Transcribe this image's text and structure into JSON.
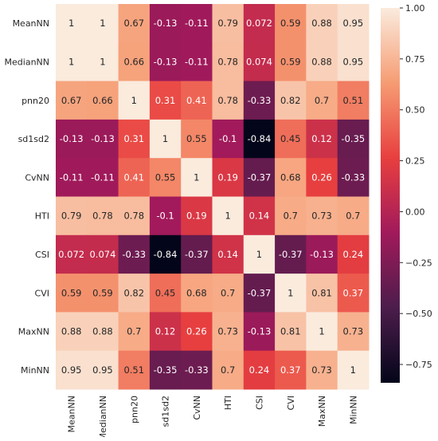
{
  "chart_data": {
    "type": "heatmap",
    "title": "",
    "xlabel": "",
    "ylabel": "",
    "x_categories": [
      "MeanNN",
      "MedianNN",
      "pnn20",
      "sd1sd2",
      "CvNN",
      "HTI",
      "CSI",
      "CVI",
      "MaxNN",
      "MinNN"
    ],
    "y_categories": [
      "MeanNN",
      "MedianNN",
      "pnn20",
      "sd1sd2",
      "CvNN",
      "HTI",
      "CSI",
      "CVI",
      "MaxNN",
      "MinNN"
    ],
    "values": [
      [
        1,
        1,
        0.67,
        -0.13,
        -0.11,
        0.79,
        0.072,
        0.59,
        0.88,
        0.95
      ],
      [
        1,
        1,
        0.66,
        -0.13,
        -0.11,
        0.78,
        0.074,
        0.59,
        0.88,
        0.95
      ],
      [
        0.67,
        0.66,
        1,
        0.31,
        0.41,
        0.78,
        -0.33,
        0.82,
        0.7,
        0.51
      ],
      [
        -0.13,
        -0.13,
        0.31,
        1,
        0.55,
        -0.1,
        -0.84,
        0.45,
        0.12,
        -0.35
      ],
      [
        -0.11,
        -0.11,
        0.41,
        0.55,
        1,
        0.19,
        -0.37,
        0.68,
        0.26,
        -0.33
      ],
      [
        0.79,
        0.78,
        0.78,
        -0.1,
        0.19,
        1,
        0.14,
        0.7,
        0.73,
        0.7
      ],
      [
        0.072,
        0.074,
        -0.33,
        -0.84,
        -0.37,
        0.14,
        1,
        -0.37,
        -0.13,
        0.24
      ],
      [
        0.59,
        0.59,
        0.82,
        0.45,
        0.68,
        0.7,
        -0.37,
        1,
        0.81,
        0.37
      ],
      [
        0.88,
        0.88,
        0.7,
        0.12,
        0.26,
        0.73,
        -0.13,
        0.81,
        1,
        0.73
      ],
      [
        0.95,
        0.95,
        0.51,
        -0.35,
        -0.33,
        0.7,
        0.24,
        0.37,
        0.73,
        1
      ]
    ],
    "value_labels": [
      [
        "1",
        "1",
        "0.67",
        "-0.13",
        "-0.11",
        "0.79",
        "0.072",
        "0.59",
        "0.88",
        "0.95"
      ],
      [
        "1",
        "1",
        "0.66",
        "-0.13",
        "-0.11",
        "0.78",
        "0.074",
        "0.59",
        "0.88",
        "0.95"
      ],
      [
        "0.67",
        "0.66",
        "1",
        "0.31",
        "0.41",
        "0.78",
        "-0.33",
        "0.82",
        "0.7",
        "0.51"
      ],
      [
        "-0.13",
        "-0.13",
        "0.31",
        "1",
        "0.55",
        "-0.1",
        "-0.84",
        "0.45",
        "0.12",
        "-0.35"
      ],
      [
        "-0.11",
        "-0.11",
        "0.41",
        "0.55",
        "1",
        "0.19",
        "-0.37",
        "0.68",
        "0.26",
        "-0.33"
      ],
      [
        "0.79",
        "0.78",
        "0.78",
        "-0.1",
        "0.19",
        "1",
        "0.14",
        "0.7",
        "0.73",
        "0.7"
      ],
      [
        "0.072",
        "0.074",
        "-0.33",
        "-0.84",
        "-0.37",
        "0.14",
        "1",
        "-0.37",
        "-0.13",
        "0.24"
      ],
      [
        "0.59",
        "0.59",
        "0.82",
        "0.45",
        "0.68",
        "0.7",
        "-0.37",
        "1",
        "0.81",
        "0.37"
      ],
      [
        "0.88",
        "0.88",
        "0.7",
        "0.12",
        "0.26",
        "0.73",
        "-0.13",
        "0.81",
        "1",
        "0.73"
      ],
      [
        "0.95",
        "0.95",
        "0.51",
        "-0.35",
        "-0.33",
        "0.7",
        "0.24",
        "0.37",
        "0.73",
        "1"
      ]
    ],
    "colorbar": {
      "range": [
        -0.84,
        1.0
      ],
      "ticks": [
        1.0,
        0.75,
        0.5,
        0.25,
        0.0,
        -0.25,
        -0.5,
        -0.75
      ],
      "tick_labels": [
        "1.00",
        "0.75",
        "0.50",
        "0.25",
        "0.00",
        "−0.25",
        "−0.50",
        "−0.75"
      ]
    },
    "colormap": "rocket",
    "colormap_stops": [
      "#03051a",
      "#4c1d4b",
      "#a11a5b",
      "#e83f3f",
      "#f69c73",
      "#faebdd"
    ],
    "grid": false,
    "legend": "colorbar-right"
  }
}
